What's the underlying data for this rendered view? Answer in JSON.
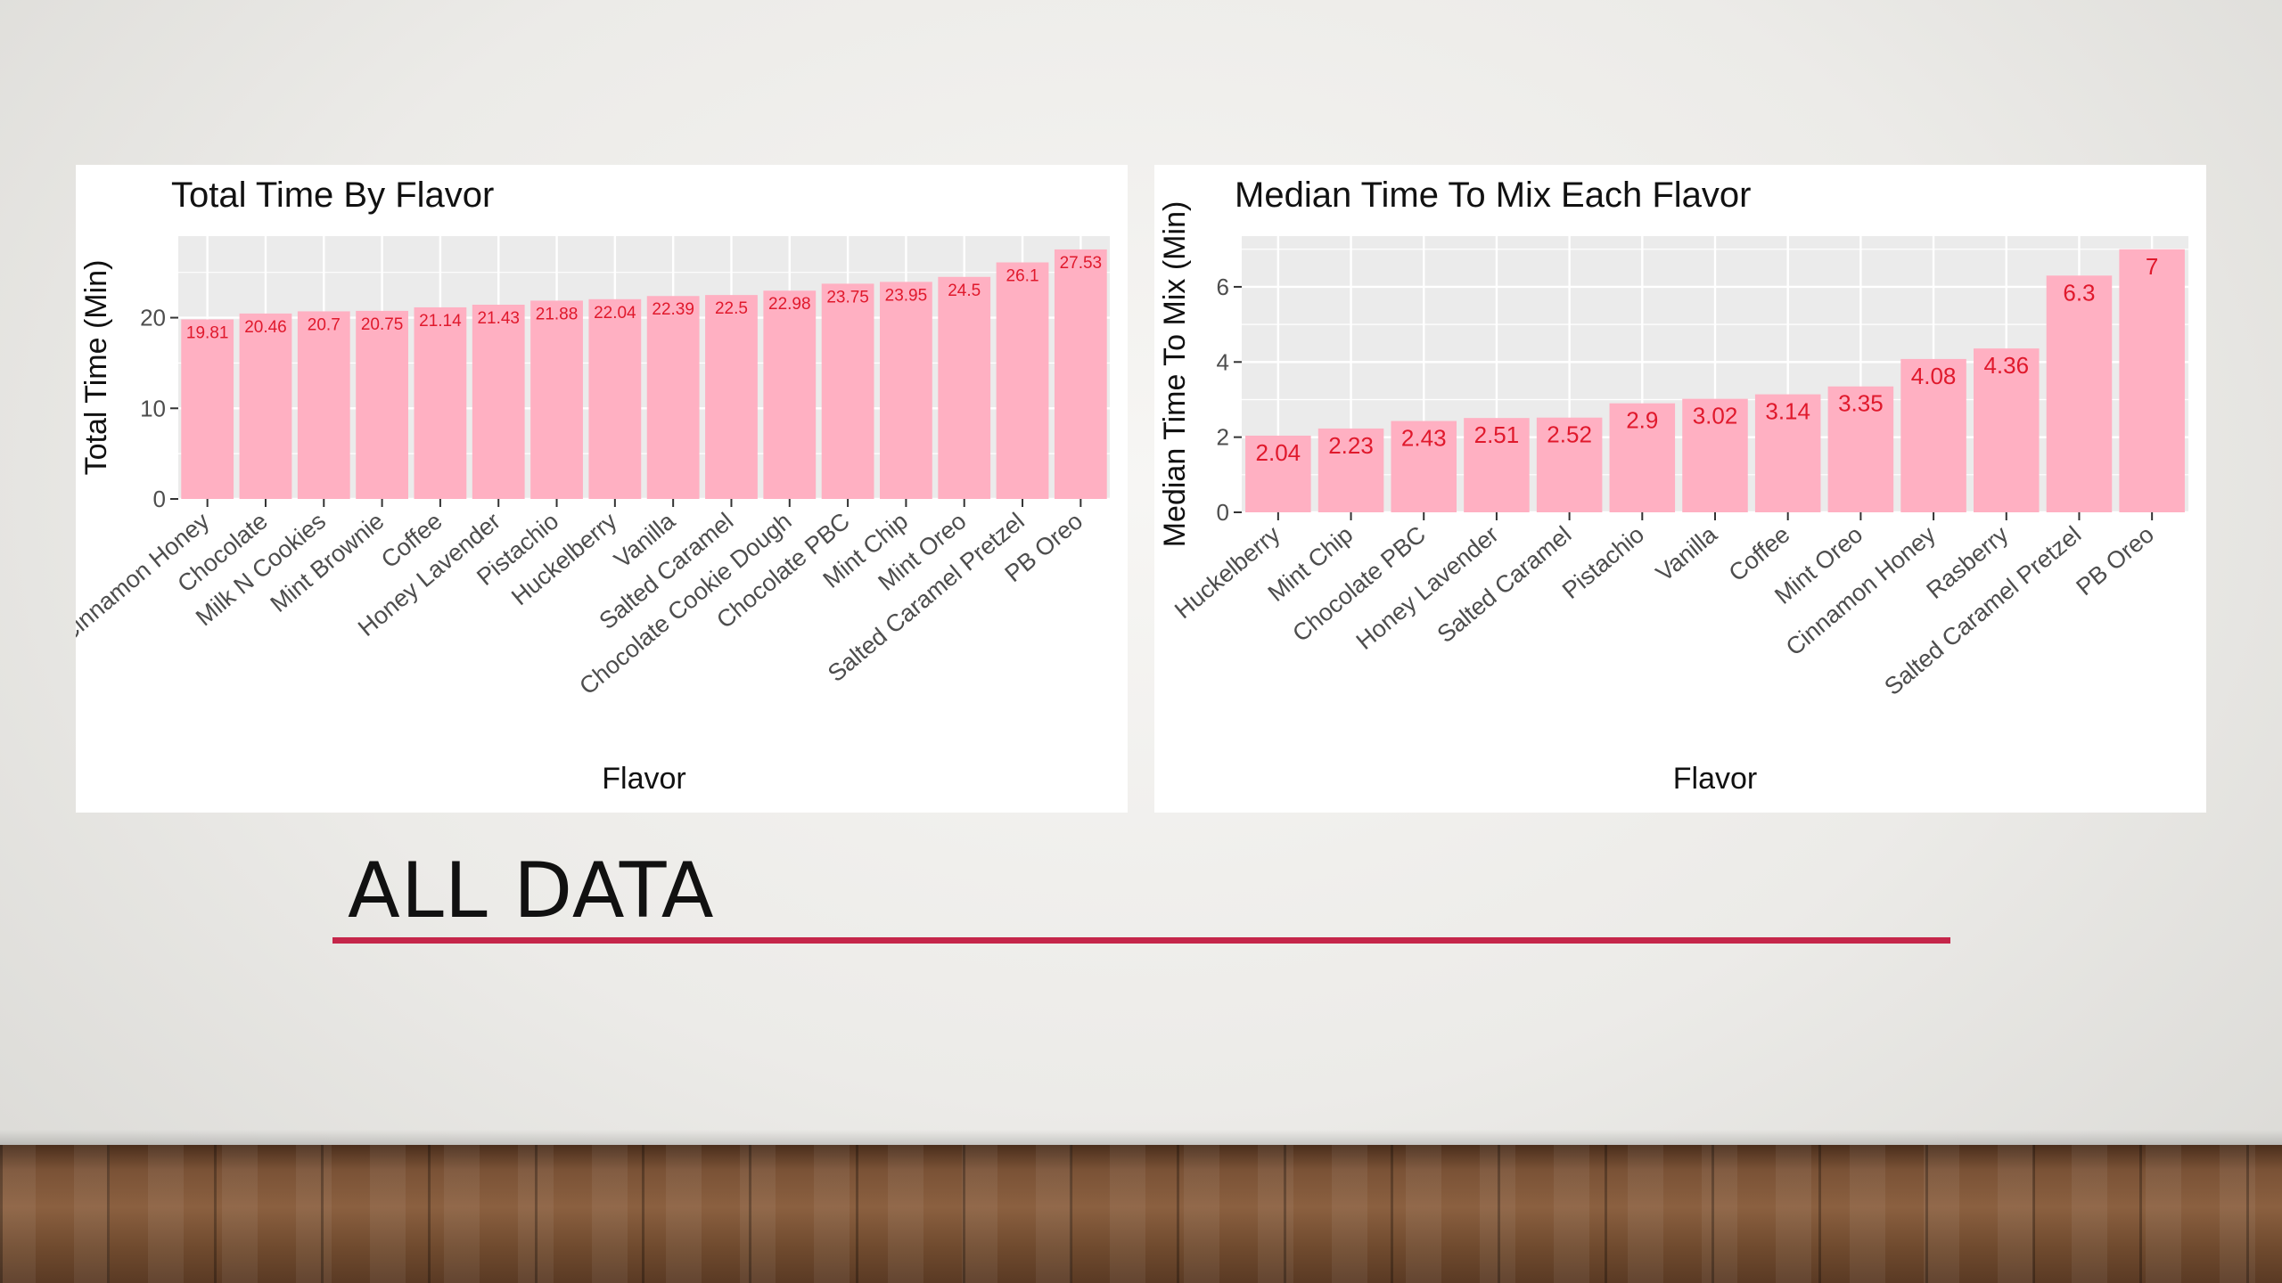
{
  "slide": {
    "title": "ALL DATA",
    "accent_color": "#c5264a"
  },
  "chart_data": [
    {
      "type": "bar",
      "title": "Total Time By Flavor",
      "xlabel": "Flavor",
      "ylabel": "Total Time (Min)",
      "ylim": [
        0,
        29
      ],
      "yticks": [
        0,
        10,
        20
      ],
      "grid": true,
      "bar_color": "#ffb0c2",
      "label_color": "#e0192c",
      "categories": [
        "Cinnamon Honey",
        "Chocolate",
        "Milk N Cookies",
        "Mint Brownie",
        "Coffee",
        "Honey Lavender",
        "Pistachio",
        "Huckelberry",
        "Vanilla",
        "Salted Caramel",
        "Chocolate Cookie Dough",
        "Chocolate PBC",
        "Mint Chip",
        "Mint Oreo",
        "Salted Caramel Pretzel",
        "PB Oreo"
      ],
      "values": [
        19.81,
        20.46,
        20.7,
        20.75,
        21.14,
        21.43,
        21.88,
        22.04,
        22.39,
        22.5,
        22.98,
        23.75,
        23.95,
        24.5,
        26.1,
        27.53
      ],
      "data_labels": [
        "19.81",
        "20.46",
        "20.7",
        "20.75",
        "21.14",
        "21.43",
        "21.88",
        "22.04",
        "22.39",
        "22.5",
        "22.98",
        "23.75",
        "23.95",
        "24.5",
        "26.1",
        "27.53"
      ]
    },
    {
      "type": "bar",
      "title": "Median Time To Mix Each Flavor",
      "xlabel": "Flavor",
      "ylabel": "Median Time To Mix (Min)",
      "ylim": [
        0,
        7.35
      ],
      "yticks": [
        0,
        2,
        4,
        6
      ],
      "grid": true,
      "bar_color": "#ffb0c2",
      "label_color": "#e0192c",
      "categories": [
        "Huckelberry",
        "Mint Chip",
        "Chocolate PBC",
        "Honey Lavender",
        "Salted Caramel",
        "Pistachio",
        "Vanilla",
        "Coffee",
        "Mint Oreo",
        "Cinnamon Honey",
        "Rasberry",
        "Salted Caramel Pretzel",
        "PB Oreo"
      ],
      "values": [
        2.04,
        2.23,
        2.43,
        2.51,
        2.52,
        2.9,
        3.02,
        3.14,
        3.35,
        4.08,
        4.36,
        6.3,
        7
      ],
      "data_labels": [
        "2.04",
        "2.23",
        "2.43",
        "2.51",
        "2.52",
        "2.9",
        "3.02",
        "3.14",
        "3.35",
        "4.08",
        "4.36",
        "6.3",
        "7"
      ]
    }
  ]
}
